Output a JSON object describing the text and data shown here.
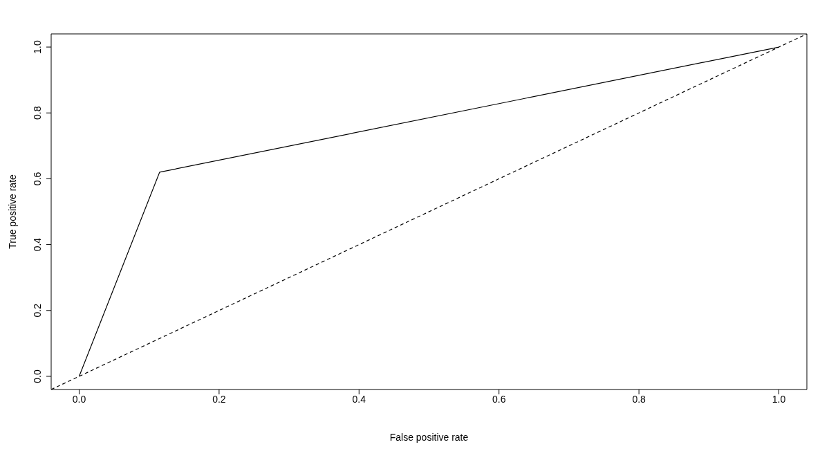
{
  "chart_data": {
    "type": "line",
    "xlabel": "False positive rate",
    "ylabel": "True positive rate",
    "xlim": [
      -0.04,
      1.04
    ],
    "ylim": [
      -0.04,
      1.04
    ],
    "xticks": [
      {
        "value": 0,
        "label": "0.0"
      },
      {
        "value": 0.2,
        "label": "0.2"
      },
      {
        "value": 0.4,
        "label": "0.4"
      },
      {
        "value": 0.6,
        "label": "0.6"
      },
      {
        "value": 0.8,
        "label": "0.8"
      },
      {
        "value": 1,
        "label": "1.0"
      }
    ],
    "yticks": [
      {
        "value": 0,
        "label": "0.0"
      },
      {
        "value": 0.2,
        "label": "0.2"
      },
      {
        "value": 0.4,
        "label": "0.4"
      },
      {
        "value": 0.6,
        "label": "0.6"
      },
      {
        "value": 0.8,
        "label": "0.8"
      },
      {
        "value": 1,
        "label": "1.0"
      }
    ],
    "grid": false,
    "marker": "none",
    "series": [
      {
        "color": "#000000",
        "x": [
          0,
          0.115,
          1
        ],
        "values": [
          0,
          0.62,
          1
        ],
        "line_style": "solid"
      },
      {
        "color": "#000000",
        "x": [
          -0.04,
          1.04
        ],
        "values": [
          -0.04,
          1.04
        ],
        "line_style": "dashed"
      }
    ]
  }
}
